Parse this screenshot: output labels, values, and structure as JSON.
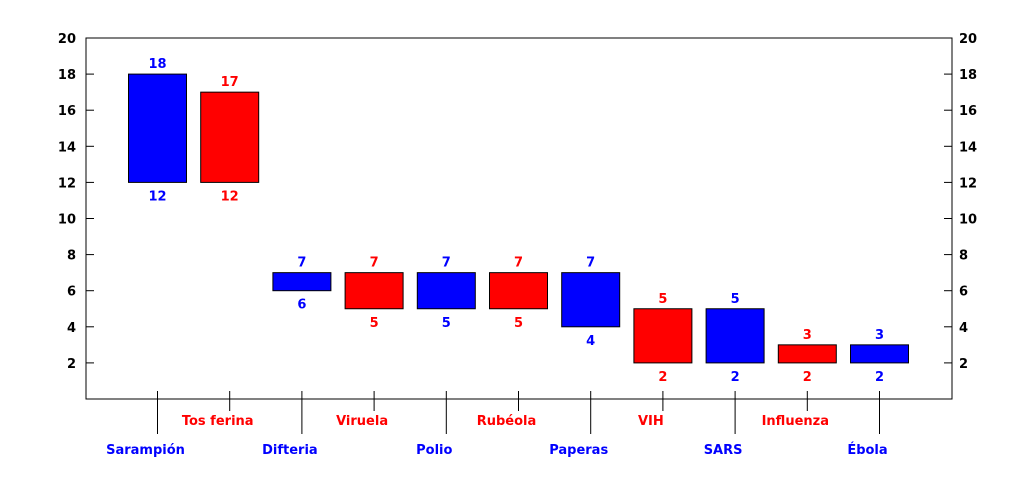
{
  "chart_data": {
    "type": "bar",
    "subtype": "floating-range",
    "title": "",
    "xlabel": "",
    "ylabel": "",
    "ylim": [
      0,
      20
    ],
    "yticks": [
      2,
      4,
      6,
      8,
      10,
      12,
      14,
      16,
      18,
      20
    ],
    "grid": false,
    "legend": "none",
    "categories": [
      "Sarampión",
      "Tos ferina",
      "Difteria",
      "Viruela",
      "Polio",
      "Rubéola",
      "Paperas",
      "VIH",
      "SARS",
      "Influenza",
      "Ébola"
    ],
    "low": [
      12,
      12,
      6,
      5,
      5,
      5,
      4,
      2,
      2,
      2,
      2
    ],
    "high": [
      18,
      17,
      7,
      7,
      7,
      7,
      7,
      5,
      5,
      3,
      3
    ],
    "colors": [
      "#0000ff",
      "#ff0000",
      "#0000ff",
      "#ff0000",
      "#0000ff",
      "#ff0000",
      "#0000ff",
      "#ff0000",
      "#0000ff",
      "#ff0000",
      "#0000ff"
    ],
    "axis_color": "#000000"
  }
}
